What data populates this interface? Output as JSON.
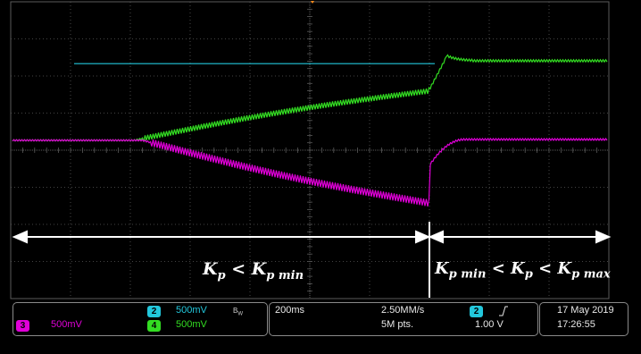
{
  "screen": {
    "background": "#000000",
    "grid_color": "#5a5a5a",
    "grid_divisions": {
      "horizontal": 10,
      "vertical": 8
    },
    "horizontal_position_marker": "orange-triangle-marker"
  },
  "channels": {
    "ch2": {
      "number": "2",
      "scale": "500mV",
      "bandwidth_icon": "B_W",
      "color": "#22c7dc"
    },
    "ch3": {
      "number": "3",
      "scale": "500mV",
      "color": "#e000d8"
    },
    "ch4": {
      "number": "4",
      "scale": "500mV",
      "color": "#33dd22"
    }
  },
  "timebase": {
    "scale": "200ms",
    "sample_rate": "2.50MM/s",
    "record_length": "5M pts."
  },
  "trigger": {
    "source": "2",
    "slope_icon": "rising-edge-icon",
    "level": "1.00 V"
  },
  "datetime": {
    "date": "17 May 2019",
    "time": "17:26:55"
  },
  "annotations": {
    "left_region": {
      "main": "K",
      "sub": "p",
      "op": " < ",
      "main2": "K",
      "sub2": "p min"
    },
    "right_region": {
      "m1": "K",
      "s1": "p min",
      "op1": " < ",
      "m2": "K",
      "s2": "p",
      "op2": " < ",
      "m3": "K",
      "s3": "p max"
    },
    "arrow_color": "#ffffff"
  }
}
